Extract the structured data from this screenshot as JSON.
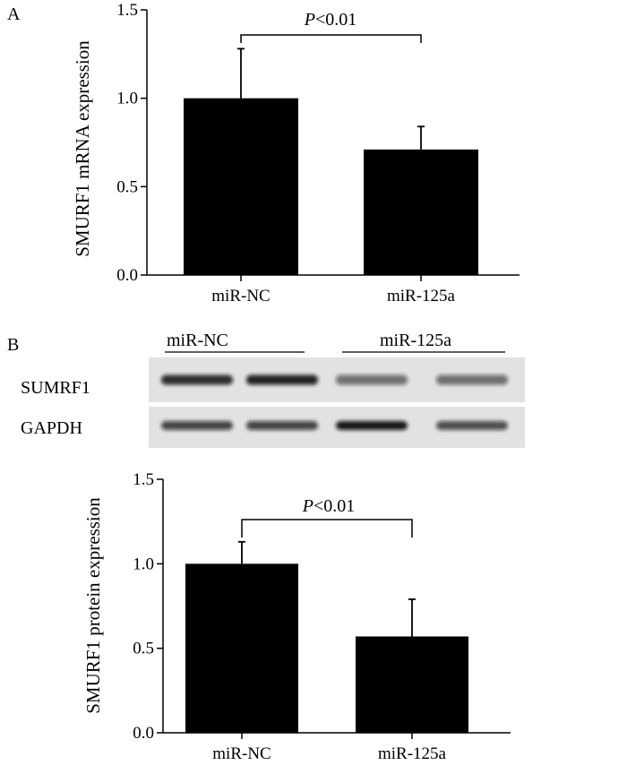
{
  "panels": [
    {
      "label": "A"
    },
    {
      "label": "B"
    }
  ],
  "chart_data": [
    {
      "type": "bar",
      "panel": "A",
      "categories": [
        "miR-NC",
        "miR-125a"
      ],
      "values": [
        1.0,
        0.71
      ],
      "error": [
        0.28,
        0.13
      ],
      "ylabel": "SMURF1 mRNA expression",
      "ylim": [
        0,
        1.5
      ],
      "yticks": [
        "0.0",
        "0.5",
        "1.0",
        "1.5"
      ],
      "annotation": {
        "italic": "P",
        "text": "<0.01"
      },
      "bar_color": "#000000"
    },
    {
      "type": "bar",
      "panel": "B",
      "categories": [
        "miR-NC",
        "miR-125a"
      ],
      "values": [
        1.0,
        0.57
      ],
      "error": [
        0.13,
        0.22
      ],
      "ylabel": "SMURF1 protein expression",
      "ylim": [
        0,
        1.5
      ],
      "yticks": [
        "0.0",
        "0.5",
        "1.0",
        "1.5"
      ],
      "annotation": {
        "italic": "P",
        "text": "<0.01"
      },
      "bar_color": "#000000"
    }
  ],
  "blot": {
    "groups": [
      "miR-NC",
      "miR-125a"
    ],
    "rows": [
      {
        "label": "SUMRF1",
        "intensity": [
          0.85,
          0.9,
          0.55,
          0.55
        ]
      },
      {
        "label": "GAPDH",
        "intensity": [
          0.75,
          0.75,
          0.95,
          0.7
        ]
      }
    ]
  }
}
